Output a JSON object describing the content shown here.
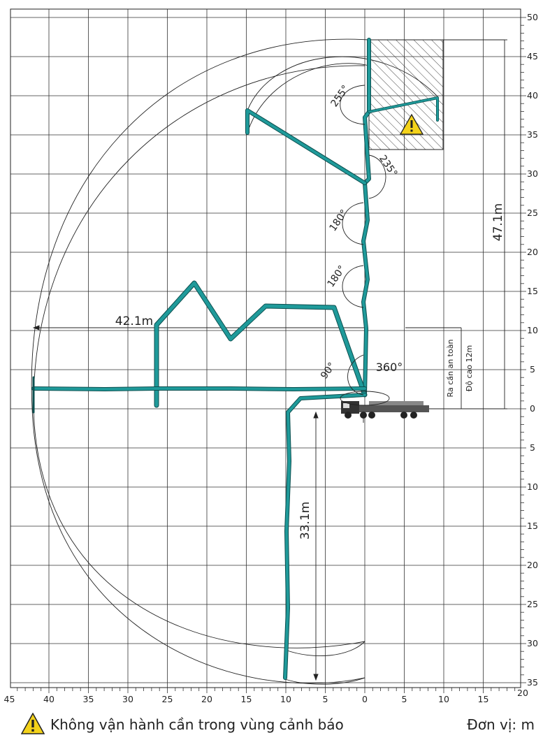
{
  "chart_data": {
    "type": "diagram",
    "x_ticks_left": [
      "45",
      "40",
      "35",
      "30",
      "25",
      "20",
      "15",
      "10",
      "5",
      "0"
    ],
    "x_ticks_right": [
      "5",
      "10",
      "15",
      "20"
    ],
    "y_ticks_up": [
      "50",
      "45",
      "40",
      "35",
      "30",
      "25",
      "20",
      "15",
      "10",
      "5",
      "0"
    ],
    "y_ticks_down": [
      "5",
      "10",
      "15",
      "20",
      "25",
      "30",
      "35"
    ],
    "dimensions": {
      "height": "47.1m",
      "reach": "42.1m",
      "depth": "33.1m"
    },
    "angles": [
      "255°",
      "235°",
      "180°",
      "180°",
      "90°",
      "360°"
    ],
    "safety_labels": [
      "Ra cần an toàn",
      "Độ cao 12m"
    ]
  },
  "footer": {
    "warning": "Không vận hành cần trong vùng cảnh báo",
    "unit": "Đơn vị: m"
  },
  "colors": {
    "boom": "#1f9a9a",
    "boom_stroke": "#0c4f4f",
    "grid": "#333333"
  }
}
